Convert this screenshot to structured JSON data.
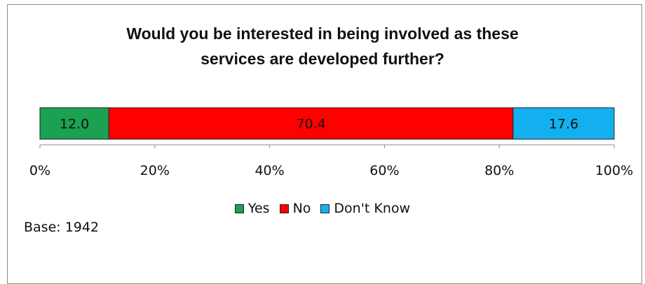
{
  "chart_data": {
    "type": "bar",
    "orientation": "horizontal",
    "stacked": true,
    "title_lines": [
      "Would you be interested in being involved as these",
      "services are developed further?"
    ],
    "series": [
      {
        "name": "Yes",
        "value": 12.0,
        "label": "12.0",
        "color": "#1aa152"
      },
      {
        "name": "No",
        "value": 70.4,
        "label": "70.4",
        "color": "#ff0000"
      },
      {
        "name": "Don't Know",
        "value": 17.6,
        "label": "17.6",
        "color": "#12b0ee"
      }
    ],
    "xlim": [
      0,
      100
    ],
    "xticks": [
      "0%",
      "20%",
      "40%",
      "60%",
      "80%",
      "100%"
    ],
    "legend_position": "bottom",
    "grid": false
  },
  "base_note": "Base: 1942"
}
